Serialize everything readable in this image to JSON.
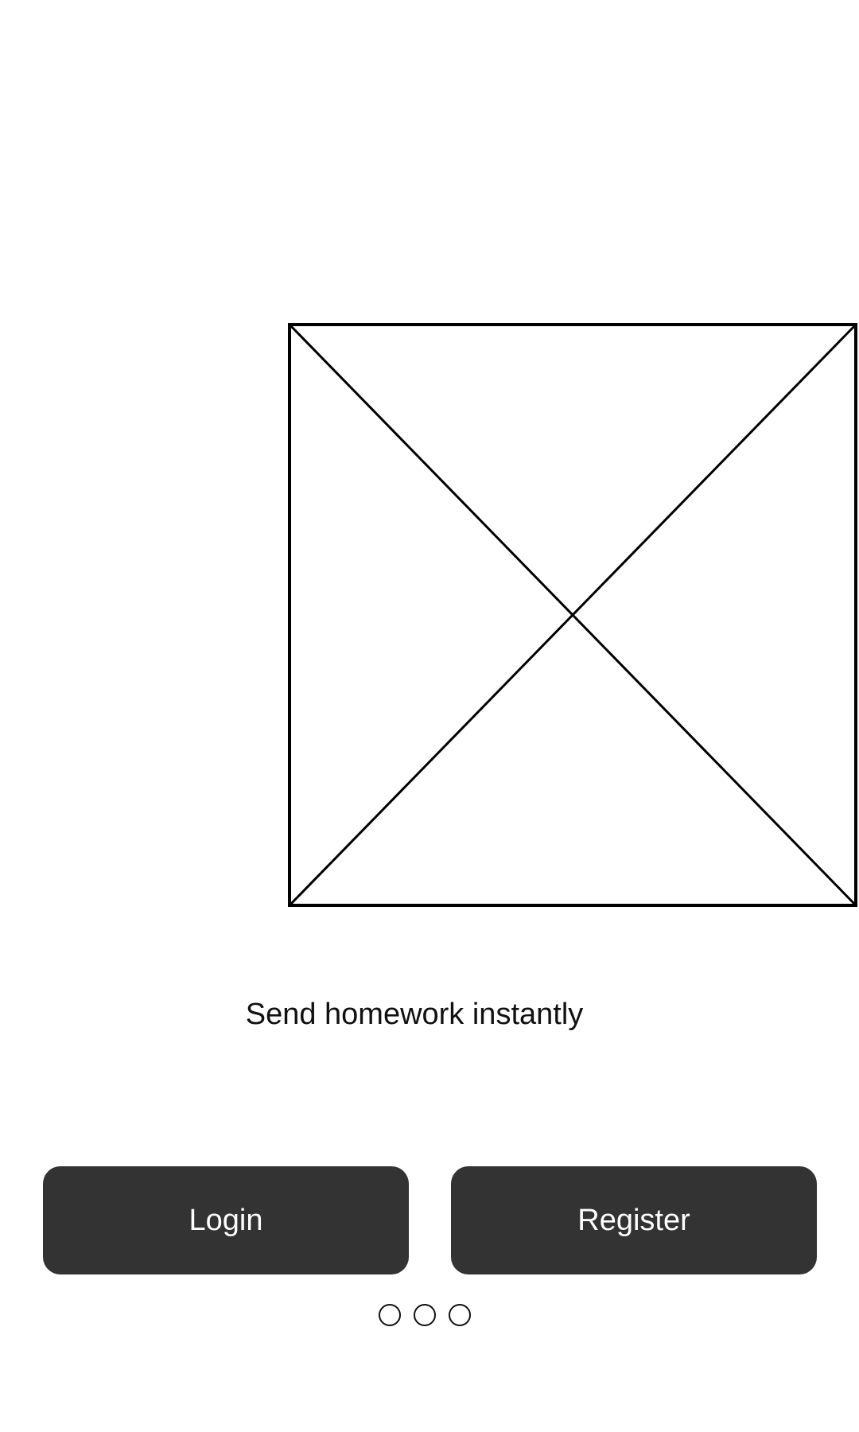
{
  "onboarding": {
    "image": {
      "icon": "image-placeholder-icon"
    },
    "tagline": "Send homework instantly",
    "buttons": {
      "login_label": "Login",
      "register_label": "Register"
    },
    "pager": {
      "total_pages": 3
    }
  },
  "colors": {
    "background": "#ffffff",
    "button_bg": "#333333",
    "button_text": "#ffffff",
    "text": "#111111",
    "outline": "#000000"
  }
}
